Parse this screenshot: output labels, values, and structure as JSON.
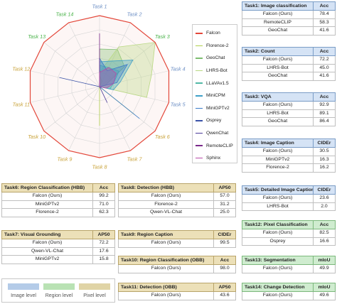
{
  "chart_data": {
    "type": "radar",
    "axes": [
      "Task 1",
      "Task 2",
      "Task 3",
      "Task 4",
      "Task 5",
      "Task 6",
      "Task 7",
      "Task 8",
      "Task 9",
      "Task 10",
      "Task 11",
      "Task 12",
      "Task 13",
      "Task 14"
    ],
    "axis_colors": [
      "#6b8ec4",
      "#6b8ec4",
      "#4bb34b",
      "#6b8ec4",
      "#6b8ec4",
      "#c8a238",
      "#c8a238",
      "#c8a238",
      "#c8a238",
      "#c8a238",
      "#c8a238",
      "#c8a238",
      "#4bb34b",
      "#4bb34b"
    ],
    "series": [
      {
        "name": "Falcon",
        "color": "#e3473a",
        "values": [
          1,
          1,
          1,
          1,
          1,
          1,
          1,
          1,
          1,
          1,
          1,
          1,
          1,
          1
        ]
      },
      {
        "name": "Florence-2",
        "color": "#b0cf4c",
        "values": [
          0.16,
          0.08,
          0.0,
          0.0,
          0.0,
          0.63,
          0.0,
          0.55,
          0.0,
          0.0,
          0.0,
          0.0,
          0.0,
          0.0
        ]
      },
      {
        "name": "GeoChat",
        "color": "#7dbd70",
        "values": [
          0.53,
          0.58,
          0.45,
          0.08,
          0.0,
          0.0,
          0.0,
          0.0,
          0.0,
          0.0,
          0.0,
          0.0,
          0.0,
          0.0
        ]
      },
      {
        "name": "LHRS-Bot",
        "color": "#b8d882",
        "values": [
          0.2,
          0.62,
          1.0,
          0.75,
          0.68,
          0.0,
          0.0,
          0.0,
          0.0,
          0.0,
          0.0,
          0.0,
          0.0,
          0.0
        ]
      },
      {
        "name": "LLaVAv1.5",
        "color": "#52b8a6",
        "values": [
          0.3,
          0.3,
          0.35,
          0.2,
          0.15,
          0.0,
          0.0,
          0.0,
          0.0,
          0.0,
          0.0,
          0.0,
          0.0,
          0.0
        ]
      },
      {
        "name": "MiniCPM",
        "color": "#3fa0c8",
        "values": [
          0.35,
          0.4,
          0.6,
          0.3,
          0.2,
          0.0,
          0.0,
          0.0,
          0.0,
          0.0,
          0.0,
          0.0,
          0.0,
          0.0
        ]
      },
      {
        "name": "MiniGPTv2",
        "color": "#3a7bc8",
        "values": [
          0.4,
          0.25,
          0.5,
          0.25,
          0.0,
          0.72,
          0.0,
          0.0,
          0.0,
          0.0,
          0.0,
          0.0,
          0.0,
          0.0
        ]
      },
      {
        "name": "Osprey",
        "color": "#3a52a8",
        "values": [
          0.0,
          0.0,
          0.0,
          0.0,
          0.0,
          0.0,
          0.0,
          0.0,
          0.0,
          0.0,
          0.0,
          0.58,
          0.0,
          0.0
        ]
      },
      {
        "name": "QwenChat",
        "color": "#4a3a98",
        "values": [
          0.0,
          0.0,
          0.0,
          0.0,
          0.0,
          0.0,
          0.25,
          0.0,
          0.0,
          0.0,
          0.0,
          0.0,
          0.0,
          0.0
        ]
      },
      {
        "name": "RemoteCLIP",
        "color": "#7a2a8a",
        "values": [
          0.75,
          0.0,
          0.0,
          0.0,
          0.0,
          0.0,
          0.0,
          0.0,
          0.0,
          0.0,
          0.0,
          0.0,
          0.0,
          0.0
        ]
      },
      {
        "name": "Sphinx",
        "color": "#b84aa8",
        "values": [
          0.2,
          0.3,
          0.3,
          0.2,
          0.1,
          0.0,
          0.0,
          0.0,
          0.0,
          0.0,
          0.0,
          0.0,
          0.0,
          0.0
        ]
      }
    ]
  },
  "key": {
    "items": [
      {
        "label": "Image level",
        "color": "#b4cbe8"
      },
      {
        "label": "Region level",
        "color": "#b9e2b4"
      },
      {
        "label": "Pixel level",
        "color": "#e0d4a6"
      }
    ]
  },
  "tables": {
    "t1": {
      "title": "Task1: Image classification",
      "metric": "Acc",
      "rows": [
        [
          "Falcon (Ours)",
          "78.4"
        ],
        [
          "RemoteCLIP",
          "58.3"
        ],
        [
          "GeoChat",
          "41.6"
        ]
      ]
    },
    "t2": {
      "title": "Task2: Count",
      "metric": "Acc",
      "rows": [
        [
          "Falcon (Ours)",
          "72.2"
        ],
        [
          "LHRS-Bot",
          "45.0"
        ],
        [
          "GeoChat",
          "41.6"
        ]
      ]
    },
    "t3": {
      "title": "Task3: VQA",
      "metric": "Acc",
      "rows": [
        [
          "Falcon (Ours)",
          "92.9"
        ],
        [
          "LHRS-Bot",
          "89.1"
        ],
        [
          "GeoChat",
          "86.4"
        ]
      ]
    },
    "t4": {
      "title": "Task4: Image Caption",
      "metric": "CIDEr",
      "rows": [
        [
          "Falcon (Ours)",
          "30.5"
        ],
        [
          "MiniGPTv2",
          "16.3"
        ],
        [
          "Florence-2",
          "16.2"
        ]
      ]
    },
    "t5": {
      "title": "Task5: Detailed Image Caption",
      "metric": "CIDEr",
      "rows": [
        [
          "Falcon (Ours)",
          "23.6"
        ],
        [
          "LHRS-Bot",
          "2.0"
        ]
      ]
    },
    "t6": {
      "title": "Task6: Region Classification (HBB)",
      "metric": "Acc",
      "rows": [
        [
          "Falcon (Ours)",
          "99.2"
        ],
        [
          "MiniGPTv2",
          "71.0"
        ],
        [
          "Florence-2",
          "62.3"
        ]
      ]
    },
    "t7": {
      "title": "Task7: Visual Grounding",
      "metric": "AP50",
      "rows": [
        [
          "Falcon (Ours)",
          "72.2"
        ],
        [
          "Qwen-VL-Chat",
          "17.6"
        ],
        [
          "MiniGPTv2",
          "15.8"
        ]
      ]
    },
    "t8": {
      "title": "Task8: Detection (HBB)",
      "metric": "AP50",
      "rows": [
        [
          "Falcon (Ours)",
          "57.0"
        ],
        [
          "Florence-2",
          "31.2"
        ],
        [
          "Qwen-VL-Chat",
          "25.0"
        ]
      ]
    },
    "t9": {
      "title": "Task9: Region Caption",
      "metric": "CIDEr",
      "rows": [
        [
          "Falcon (Ours)",
          "99.5"
        ]
      ]
    },
    "t10": {
      "title": "Task10: Region Classification (OBB)",
      "metric": "Acc",
      "rows": [
        [
          "Falcon (Ours)",
          "98.0"
        ]
      ]
    },
    "t11": {
      "title": "Task11: Detection (OBB)",
      "metric": "AP50",
      "rows": [
        [
          "Falcon (Ours)",
          "43.6"
        ]
      ]
    },
    "t12": {
      "title": "Task12: Pixel Classification",
      "metric": "Acc",
      "rows": [
        [
          "Falcon (Ours)",
          "82.5"
        ],
        [
          "Osprey",
          "16.6"
        ]
      ]
    },
    "t13": {
      "title": "Task13: Segmentation",
      "metric": "mIoU",
      "rows": [
        [
          "Falcon (Ours)",
          "49.9"
        ]
      ]
    },
    "t14": {
      "title": "Task14: Change Detection",
      "metric": "mIoU",
      "rows": [
        [
          "Falcon (Ours)",
          "49.6"
        ]
      ]
    }
  }
}
